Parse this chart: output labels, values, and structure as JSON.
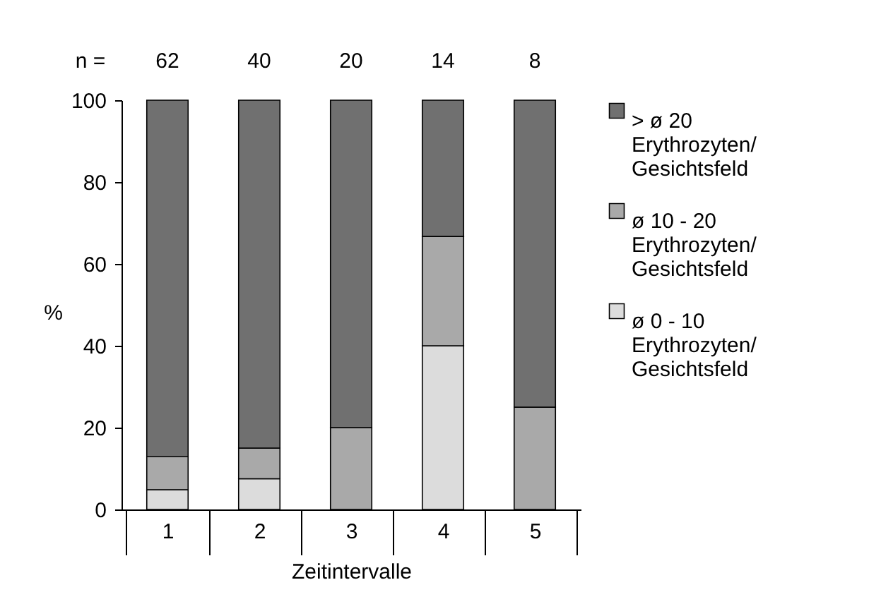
{
  "chart_data": {
    "type": "bar",
    "stacked": true,
    "ylabel": "%",
    "xlabel": "Zeitintervalle",
    "categories": [
      "1",
      "2",
      "3",
      "4",
      "5"
    ],
    "series": [
      {
        "name": "ø 0 - 10 Erythrozyten/ Gesichtsfeld",
        "color": "#dcdcdc",
        "values": [
          4.8,
          7.5,
          0,
          40,
          0
        ]
      },
      {
        "name": "ø 10 - 20 Erythrozyten/ Gesichtsfeld",
        "color": "#a9a9a9",
        "values": [
          8.1,
          7.5,
          20,
          26.7,
          25
        ]
      },
      {
        "name": "> ø 20 Erythrozyten/ Gesichtsfeld",
        "color": "#707070",
        "values": [
          87.1,
          85,
          80,
          33.3,
          75
        ]
      }
    ],
    "ylim": [
      0,
      100
    ],
    "yticks": [
      0,
      20,
      40,
      60,
      80,
      100
    ],
    "grid": false,
    "legend": "right",
    "annotations": [
      "n =",
      "62",
      "40",
      "20",
      "14",
      "8"
    ]
  }
}
